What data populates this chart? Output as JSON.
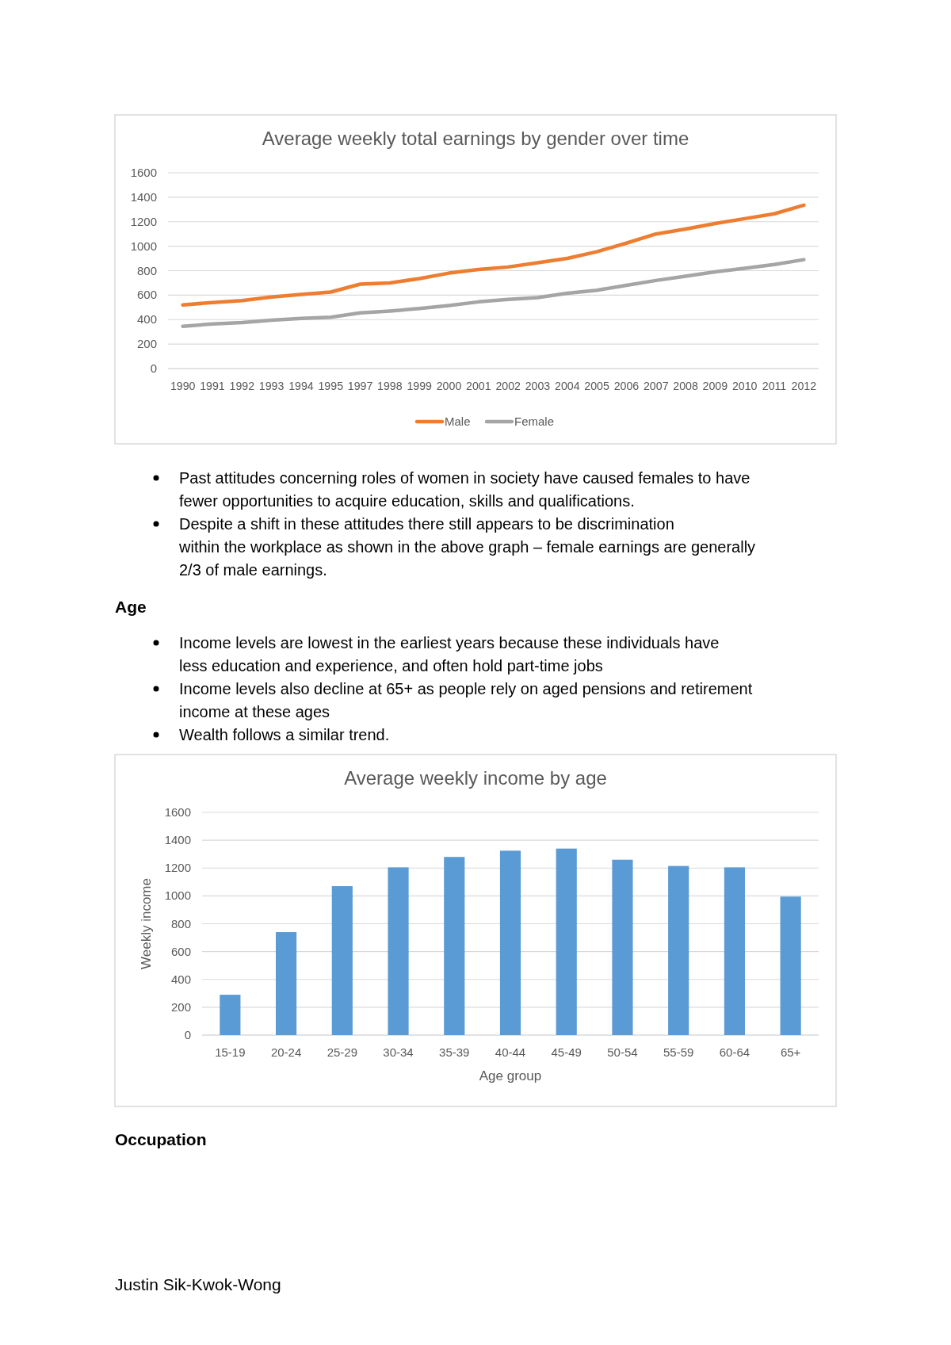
{
  "chart_data": [
    {
      "type": "line",
      "title": "Average weekly total earnings by gender over time",
      "categories": [
        "1990",
        "1991",
        "1992",
        "1993",
        "1994",
        "1995",
        "1997",
        "1998",
        "1999",
        "2000",
        "2001",
        "2002",
        "2003",
        "2004",
        "2005",
        "2006",
        "2007",
        "2008",
        "2009",
        "2010",
        "2011",
        "2012"
      ],
      "series": [
        {
          "name": "Male",
          "color": "#ed7d31",
          "values": [
            520,
            540,
            555,
            585,
            605,
            625,
            690,
            700,
            735,
            780,
            810,
            830,
            865,
            900,
            955,
            1025,
            1100,
            1140,
            1185,
            1225,
            1265,
            1335
          ]
        },
        {
          "name": "Female",
          "color": "#a5a5a5",
          "values": [
            345,
            365,
            375,
            395,
            410,
            420,
            455,
            470,
            490,
            515,
            545,
            565,
            580,
            615,
            640,
            680,
            720,
            755,
            790,
            820,
            850,
            890
          ]
        }
      ],
      "ylim": [
        0,
        1600
      ],
      "yticks": [
        0,
        200,
        400,
        600,
        800,
        1000,
        1200,
        1400,
        1600
      ],
      "grid": "y",
      "legend": "bottom",
      "marker": "none",
      "line_style": "solid",
      "annotations": [
        "Past attitudes concerning roles of women in society have caused females to have fewer opportunities to acquire education, skills and qualifications.",
        "Despite a shift in these attitudes there still appears to be discrimination within the workplace as shown in the above graph – female earnings are generally 2/3 of male earnings."
      ]
    },
    {
      "type": "bar",
      "title": "Average weekly income by age",
      "xlabel": "Age group",
      "ylabel": "Weekly income",
      "categories": [
        "15-19",
        "20-24",
        "25-29",
        "30-34",
        "35-39",
        "40-44",
        "45-49",
        "50-54",
        "55-59",
        "60-64",
        "65+"
      ],
      "values": [
        290,
        740,
        1070,
        1205,
        1280,
        1325,
        1340,
        1260,
        1215,
        1205,
        995
      ],
      "color": "#5b9bd5",
      "ylim": [
        0,
        1600
      ],
      "yticks": [
        0,
        200,
        400,
        600,
        800,
        1000,
        1200,
        1400,
        1600
      ],
      "grid": "y",
      "legend": false,
      "annotations": [
        "Age",
        "Income levels are lowest in the earliest years because these individuals have less education and experience, and often hold part-time jobs",
        "Income levels also decline at 65+ as people rely on aged pensions and retirement income at these ages",
        "Wealth follows a similar trend.",
        "Occupation",
        "Justin Sik-Kwok-Wong"
      ]
    }
  ]
}
